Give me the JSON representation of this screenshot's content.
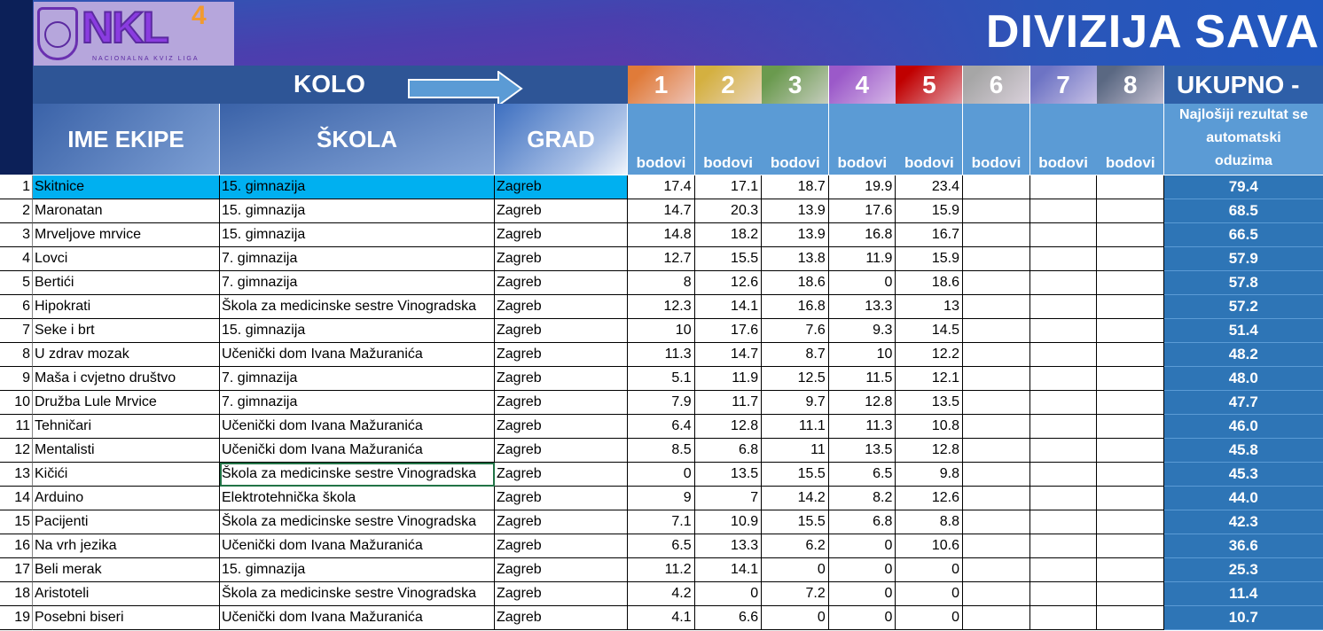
{
  "logo": {
    "text": "NKL",
    "superscript": "4",
    "subtitle": "NACIONALNA KVIZ LIGA"
  },
  "title": "DIVIZIJA SAVA",
  "kolo_label": "KOLO",
  "rounds": [
    "1",
    "2",
    "3",
    "4",
    "5",
    "6",
    "7",
    "8"
  ],
  "round_colors": [
    "#e07b39",
    "#d4b040",
    "#6a9a4e",
    "#9b59c9",
    "#c00000",
    "#a6a6a6",
    "#6d73c4",
    "#5a6882"
  ],
  "total_label": "UKUPNO -",
  "total_note": [
    "Najlošiji rezultat se",
    "automatski",
    "oduzima"
  ],
  "headers": {
    "name": "IME EKIPE",
    "school": "ŠKOLA",
    "city": "GRAD",
    "points": "bodovi"
  },
  "rows": [
    {
      "n": "1",
      "name": "Skitnice",
      "school": "15. gimnazija",
      "city": "Zagreb",
      "s": [
        "17.4",
        "17.1",
        "18.7",
        "19.9",
        "23.4",
        "",
        "",
        ""
      ],
      "total": "79.4"
    },
    {
      "n": "2",
      "name": "Maronatan",
      "school": "15. gimnazija",
      "city": "Zagreb",
      "s": [
        "14.7",
        "20.3",
        "13.9",
        "17.6",
        "15.9",
        "",
        "",
        ""
      ],
      "total": "68.5"
    },
    {
      "n": "3",
      "name": "Mrveljove mrvice",
      "school": "15. gimnazija",
      "city": "Zagreb",
      "s": [
        "14.8",
        "18.2",
        "13.9",
        "16.8",
        "16.7",
        "",
        "",
        ""
      ],
      "total": "66.5"
    },
    {
      "n": "4",
      "name": "Lovci",
      "school": "7. gimnazija",
      "city": "Zagreb",
      "s": [
        "12.7",
        "15.5",
        "13.8",
        "11.9",
        "15.9",
        "",
        "",
        ""
      ],
      "total": "57.9"
    },
    {
      "n": "5",
      "name": "Bertići",
      "school": "7. gimnazija",
      "city": "Zagreb",
      "s": [
        "8",
        "12.6",
        "18.6",
        "0",
        "18.6",
        "",
        "",
        ""
      ],
      "total": "57.8"
    },
    {
      "n": "6",
      "name": "Hipokrati",
      "school": "Škola za medicinske sestre Vinogradska",
      "city": "Zagreb",
      "s": [
        "12.3",
        "14.1",
        "16.8",
        "13.3",
        "13",
        "",
        "",
        ""
      ],
      "total": "57.2"
    },
    {
      "n": "7",
      "name": "Seke i brt",
      "school": "15. gimnazija",
      "city": "Zagreb",
      "s": [
        "10",
        "17.6",
        "7.6",
        "9.3",
        "14.5",
        "",
        "",
        ""
      ],
      "total": "51.4"
    },
    {
      "n": "8",
      "name": "U zdrav mozak",
      "school": "Učenički dom Ivana Mažuranića",
      "city": "Zagreb",
      "s": [
        "11.3",
        "14.7",
        "8.7",
        "10",
        "12.2",
        "",
        "",
        ""
      ],
      "total": "48.2"
    },
    {
      "n": "9",
      "name": "Maša i cvjetno društvo",
      "school": "7. gimnazija",
      "city": "Zagreb",
      "s": [
        "5.1",
        "11.9",
        "12.5",
        "11.5",
        "12.1",
        "",
        "",
        ""
      ],
      "total": "48.0"
    },
    {
      "n": "10",
      "name": "Družba Lule Mrvice",
      "school": "7. gimnazija",
      "city": "Zagreb",
      "s": [
        "7.9",
        "11.7",
        "9.7",
        "12.8",
        "13.5",
        "",
        "",
        ""
      ],
      "total": "47.7"
    },
    {
      "n": "11",
      "name": "Tehničari",
      "school": "Učenički dom Ivana Mažuranića",
      "city": "Zagreb",
      "s": [
        "6.4",
        "12.8",
        "11.1",
        "11.3",
        "10.8",
        "",
        "",
        ""
      ],
      "total": "46.0"
    },
    {
      "n": "12",
      "name": "Mentalisti",
      "school": "Učenički dom Ivana Mažuranića",
      "city": "Zagreb",
      "s": [
        "8.5",
        "6.8",
        "11",
        "13.5",
        "12.8",
        "",
        "",
        ""
      ],
      "total": "45.8"
    },
    {
      "n": "13",
      "name": "Kičići",
      "school": "Škola za medicinske sestre Vinogradska",
      "city": "Zagreb",
      "s": [
        "0",
        "13.5",
        "15.5",
        "6.5",
        "9.8",
        "",
        "",
        ""
      ],
      "total": "45.3"
    },
    {
      "n": "14",
      "name": "Arduino",
      "school": "Elektrotehnička škola",
      "city": "Zagreb",
      "s": [
        "9",
        "7",
        "14.2",
        "8.2",
        "12.6",
        "",
        "",
        ""
      ],
      "total": "44.0"
    },
    {
      "n": "15",
      "name": "Pacijenti",
      "school": "Škola za medicinske sestre Vinogradska",
      "city": "Zagreb",
      "s": [
        "7.1",
        "10.9",
        "15.5",
        "6.8",
        "8.8",
        "",
        "",
        ""
      ],
      "total": "42.3"
    },
    {
      "n": "16",
      "name": "Na vrh jezika",
      "school": "Učenički dom Ivana Mažuranića",
      "city": "Zagreb",
      "s": [
        "6.5",
        "13.3",
        "6.2",
        "0",
        "10.6",
        "",
        "",
        ""
      ],
      "total": "36.6"
    },
    {
      "n": "17",
      "name": "Beli merak",
      "school": "15. gimnazija",
      "city": "Zagreb",
      "s": [
        "11.2",
        "14.1",
        "0",
        "0",
        "0",
        "",
        "",
        ""
      ],
      "total": "25.3"
    },
    {
      "n": "18",
      "name": "Aristoteli",
      "school": "Škola za medicinske sestre Vinogradska",
      "city": "Zagreb",
      "s": [
        "4.2",
        "0",
        "7.2",
        "0",
        "0",
        "",
        "",
        ""
      ],
      "total": "11.4"
    },
    {
      "n": "19",
      "name": "Posebni biseri",
      "school": "Učenički dom Ivana Mažuranića",
      "city": "Zagreb",
      "s": [
        "4.1",
        "6.6",
        "0",
        "0",
        "0",
        "",
        "",
        ""
      ],
      "total": "10.7"
    }
  ]
}
